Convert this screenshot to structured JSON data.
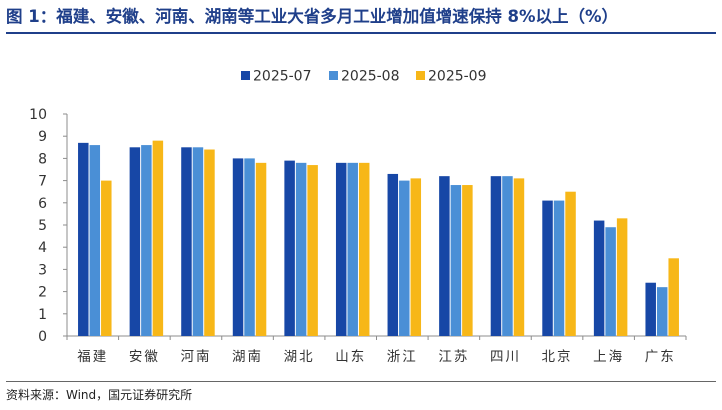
{
  "header": {
    "title": "图 1：福建、安徽、河南、湖南等工业大省多月工业增加值增速保持 8%以上（%）"
  },
  "footer": {
    "source": "资料来源：Wind，国元证券研究所"
  },
  "colors": {
    "title": "#1f3f8a",
    "series": [
      "#1747a6",
      "#4a8fd6",
      "#f7b718"
    ],
    "axis": "#8c8c8c",
    "text": "#333333"
  },
  "chart_data": {
    "type": "bar",
    "categories": [
      "福建",
      "安徽",
      "河南",
      "湖南",
      "湖北",
      "山东",
      "浙江",
      "江苏",
      "四川",
      "北京",
      "上海",
      "广东"
    ],
    "series": [
      {
        "name": "2025-07",
        "values": [
          8.7,
          8.5,
          8.5,
          8.0,
          7.9,
          7.8,
          7.3,
          7.2,
          7.2,
          6.1,
          5.2,
          2.4
        ]
      },
      {
        "name": "2025-08",
        "values": [
          8.6,
          8.6,
          8.5,
          8.0,
          7.8,
          7.8,
          7.0,
          6.8,
          7.2,
          6.1,
          4.9,
          2.2
        ]
      },
      {
        "name": "2025-09",
        "values": [
          7.0,
          8.8,
          8.4,
          7.8,
          7.7,
          7.8,
          7.1,
          6.8,
          7.1,
          6.5,
          5.3,
          3.5
        ]
      }
    ],
    "ylim": [
      0,
      10
    ],
    "yticks": [
      "0",
      "1",
      "2",
      "3",
      "4",
      "5",
      "6",
      "7",
      "8",
      "9",
      "10"
    ],
    "grid": false,
    "legend": "top-center"
  }
}
